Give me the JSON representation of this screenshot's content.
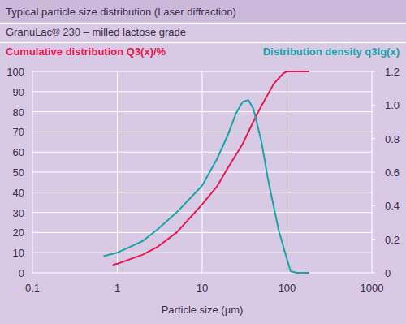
{
  "chart_data": {
    "type": "line",
    "title": "Typical particle size distribution (Laser diffraction)",
    "subtitle": "GranuLac® 230 – milled lactose grade",
    "x_label": "Particle size (µm)",
    "y_label": "Cumulative distribution Q3(x)/%",
    "y2_label": "Distribution density q3lg(x)",
    "log": "x",
    "grid": true,
    "xlim": [
      0.1,
      1000
    ],
    "xticks": [
      0.1,
      1,
      10,
      100,
      1000
    ],
    "ylim": [
      0,
      100
    ],
    "yticks": [
      0,
      10,
      20,
      30,
      40,
      50,
      60,
      70,
      80,
      90,
      100
    ],
    "y2lim": [
      0,
      1.2
    ],
    "y2ticks": [
      0,
      0.2,
      0.4,
      0.6,
      0.8,
      {
        "value": 1.0,
        "label": "1.0"
      },
      1.2
    ],
    "series": [
      {
        "color": "#e8174f",
        "x": [
          0.9,
          1,
          2,
          3,
          5,
          10,
          15,
          20,
          30,
          40,
          50,
          70,
          90,
          100,
          180
        ],
        "values": [
          4,
          4.5,
          9,
          13,
          20,
          34,
          43,
          52,
          64,
          75,
          83,
          94,
          99,
          100,
          100
        ]
      },
      {
        "color": "#1aa3a8",
        "axis": "y2",
        "x": [
          0.7,
          1,
          1.5,
          2,
          3,
          5,
          10,
          15,
          20,
          25,
          30,
          35,
          40,
          50,
          60,
          80,
          100,
          110,
          130,
          180
        ],
        "values": [
          0.1,
          0.12,
          0.16,
          0.19,
          0.26,
          0.36,
          0.52,
          0.68,
          0.82,
          0.95,
          1.02,
          1.03,
          0.98,
          0.78,
          0.55,
          0.25,
          0.08,
          0.01,
          0,
          0
        ]
      }
    ]
  }
}
